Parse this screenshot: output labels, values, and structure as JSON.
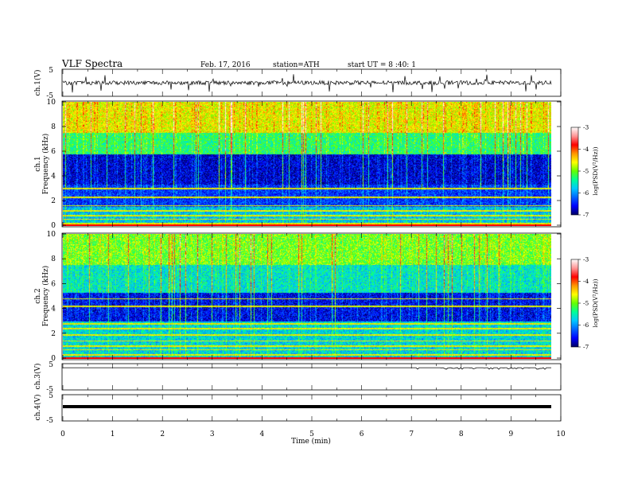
{
  "header": {
    "title": "VLF Spectra",
    "date": "Feb. 17, 2016",
    "station": "station=ATH",
    "start": "start UT = 8 :40: 1"
  },
  "colors": {
    "colormap": [
      "#000064",
      "#0000ff",
      "#0064ff",
      "#00c8ff",
      "#00ff96",
      "#64ff00",
      "#ffff00",
      "#ff9600",
      "#ff0000",
      "#ff9696",
      "#ffffff"
    ],
    "trace": "#000000"
  },
  "chart_data": [
    {
      "type": "line",
      "name": "ch1-waveform",
      "ylabel": "ch.1(V)",
      "ylim": [
        -5,
        5
      ],
      "yticks": [
        "5",
        "-5"
      ],
      "xlim": [
        0,
        9.8
      ],
      "note_level": "noisy signal around ~0 V with spikes"
    },
    {
      "type": "heatmap",
      "name": "ch1-spectrogram",
      "ylabel": "ch.1\nFrequency (kHz)",
      "ylabel_top": "ch.1",
      "ylabel_bottom": "Frequency (kHz)",
      "ylim": [
        0,
        10
      ],
      "yticks": [
        "0",
        "2",
        "4",
        "6",
        "8",
        "10"
      ],
      "xlim": [
        0,
        9.8
      ],
      "colorbar_label": "log(PSD(V²/Hz))",
      "colorbar_ticks": [
        "-3",
        "-4",
        "-5",
        "-6",
        "-7"
      ],
      "colorbar_range": [
        -7,
        -3
      ],
      "bands": [
        {
          "from": 0,
          "to": 1.5,
          "level": -5.8
        },
        {
          "from": 1.5,
          "to": 3.3,
          "level": -6.4
        },
        {
          "from": 3.3,
          "to": 5.8,
          "level": -6.7
        },
        {
          "from": 5.8,
          "to": 7.5,
          "level": -5.3
        },
        {
          "from": 7.5,
          "to": 10,
          "level": -4.6
        }
      ],
      "lines_khz": [
        0.15,
        0.5,
        0.8,
        1.2,
        1.6,
        2.3,
        3.0
      ]
    },
    {
      "type": "heatmap",
      "name": "ch2-spectrogram",
      "ylabel_top": "ch.2",
      "ylabel_bottom": "Frequency (kHz)",
      "ylim": [
        0,
        10
      ],
      "yticks": [
        "0",
        "2",
        "4",
        "6",
        "8",
        "10"
      ],
      "xlim": [
        0,
        9.8
      ],
      "colorbar_label": "log(PSD(V²/Hz))",
      "colorbar_ticks": [
        "-3",
        "-4",
        "-5",
        "-6",
        "-7"
      ],
      "colorbar_range": [
        -7,
        -3
      ],
      "bands": [
        {
          "from": 0,
          "to": 3.0,
          "level": -5.7
        },
        {
          "from": 3.0,
          "to": 5.3,
          "level": -6.6
        },
        {
          "from": 5.3,
          "to": 7.5,
          "level": -5.6
        },
        {
          "from": 7.5,
          "to": 10,
          "level": -5.0
        }
      ],
      "lines_khz": [
        0.3,
        0.7,
        1.0,
        1.4,
        1.9,
        2.4,
        2.8,
        4.2,
        4.8
      ]
    },
    {
      "type": "line",
      "name": "ch3-waveform",
      "ylabel": "ch.3(V)",
      "ylim": [
        -5,
        5
      ],
      "yticks": [
        "5",
        "-5"
      ],
      "xlim": [
        0,
        9.8
      ],
      "level": 5
    },
    {
      "type": "line",
      "name": "ch4-waveform",
      "ylabel": "ch.4(V)",
      "ylim": [
        -5,
        5
      ],
      "yticks": [
        "5",
        "-5"
      ],
      "xlim": [
        0,
        9.8
      ],
      "level": 0
    }
  ],
  "xaxis": {
    "label": "Time (min)",
    "ticks": [
      "0",
      "1",
      "2",
      "3",
      "4",
      "5",
      "6",
      "7",
      "8",
      "9",
      "10"
    ],
    "range": [
      0,
      10
    ]
  }
}
